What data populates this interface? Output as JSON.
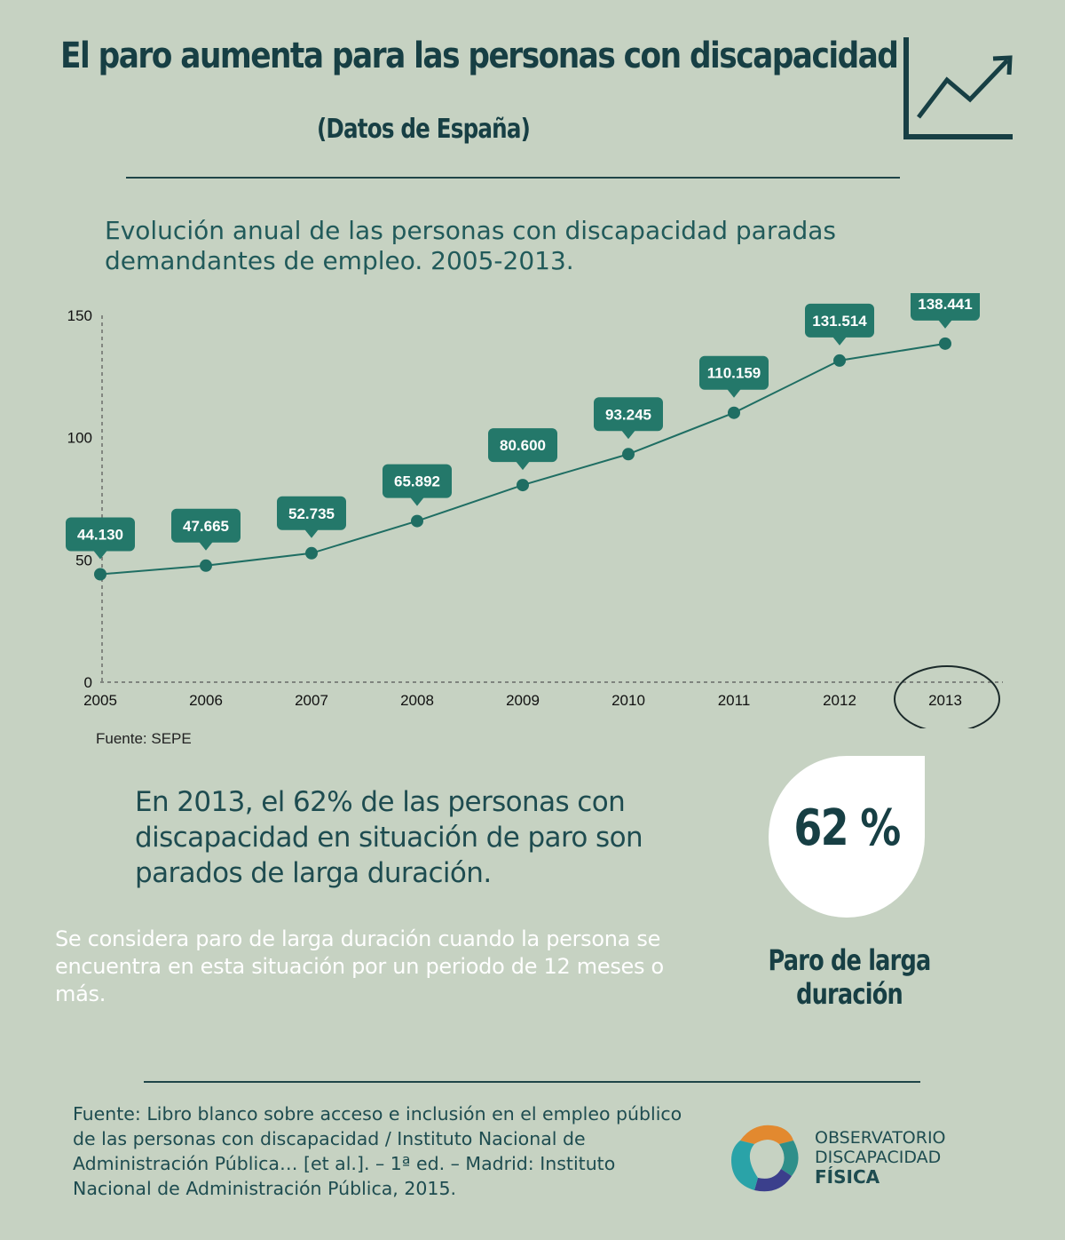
{
  "title": "El paro aumenta para las personas con discapacidad",
  "subtitle": "(Datos de España)",
  "chart_heading": "Evolución anual de las personas con discapacidad paradas demandantes de empleo. 2005-2013.",
  "chart_data": {
    "type": "line",
    "title": "",
    "xlabel": "",
    "ylabel": "",
    "x": [
      "2005",
      "2006",
      "2007",
      "2008",
      "2009",
      "2010",
      "2011",
      "2012",
      "2013"
    ],
    "values": [
      44.13,
      47.665,
      52.735,
      65.892,
      80.6,
      93.245,
      110.159,
      131.514,
      138.441
    ],
    "data_labels": [
      "44.130",
      "47.665",
      "52.735",
      "65.892",
      "80.600",
      "93.245",
      "110.159",
      "131.514",
      "138.441"
    ],
    "y_ticks": [
      "0",
      "50",
      "100",
      "150"
    ],
    "y_tick_values": [
      0,
      50,
      100,
      150
    ],
    "ylim": [
      0,
      150
    ],
    "highlighted_category": "2013",
    "grid": false,
    "colors": {
      "line": "#1f6e63",
      "label_bg": "#24786a",
      "label_text": "#ffffff"
    }
  },
  "chart_source": "Fuente: SEPE",
  "stat_text": "En 2013, el 62% de las personas con discapacidad en situación de paro son parados de larga duración.",
  "definition_text": "Se considera paro de larga duración cuando la persona se encuentra en esta situación por un periodo de 12 meses o más.",
  "badge": {
    "value": "62 %",
    "label": "Paro de larga duración"
  },
  "citation": "Fuente: Libro blanco sobre acceso e inclusión en el empleo público de las personas con discapacidad / Instituto Nacional de Administración Pública… [et al.]. – 1ª ed. – Madrid: Instituto Nacional de Administración Pública, 2015.",
  "logo": {
    "line1": "OBSERVATORIO",
    "line2": "DISCAPACIDAD",
    "line3": "FÍSICA"
  },
  "icons": [
    "trend-up-icon",
    "observatorio-logo-icon"
  ]
}
